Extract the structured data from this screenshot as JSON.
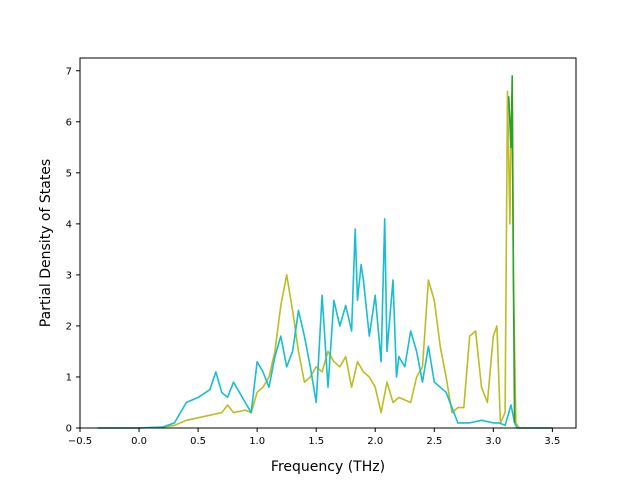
{
  "chart_data": {
    "type": "line",
    "title": "",
    "xlabel": "Frequency (THz)",
    "ylabel": "Partial Density of States",
    "xlim": [
      -0.5,
      3.7
    ],
    "ylim": [
      0,
      7.25
    ],
    "xticks": [
      -0.5,
      0.0,
      0.5,
      1.0,
      1.5,
      2.0,
      2.5,
      3.0,
      3.5
    ],
    "xtick_labels": [
      "−0.5",
      "0.0",
      "0.5",
      "1.0",
      "1.5",
      "2.0",
      "2.5",
      "3.0",
      "3.5"
    ],
    "yticks": [
      0,
      1,
      2,
      3,
      4,
      5,
      6,
      7
    ],
    "ytick_labels": [
      "0",
      "1",
      "2",
      "3",
      "4",
      "5",
      "6",
      "7"
    ],
    "grid": false,
    "legend": "none",
    "series": [
      {
        "color": "#bcbd22",
        "x": [
          -0.35,
          0.0,
          0.2,
          0.3,
          0.4,
          0.5,
          0.6,
          0.7,
          0.75,
          0.8,
          0.9,
          0.95,
          1.0,
          1.05,
          1.1,
          1.15,
          1.2,
          1.25,
          1.3,
          1.35,
          1.4,
          1.45,
          1.5,
          1.55,
          1.6,
          1.65,
          1.7,
          1.75,
          1.8,
          1.85,
          1.9,
          1.95,
          2.0,
          2.05,
          2.1,
          2.15,
          2.2,
          2.3,
          2.35,
          2.4,
          2.45,
          2.5,
          2.55,
          2.6,
          2.65,
          2.7,
          2.75,
          2.8,
          2.85,
          2.9,
          2.95,
          3.0,
          3.03,
          3.06,
          3.1,
          3.12,
          3.14,
          3.15,
          3.16,
          3.17,
          3.19,
          3.22,
          3.5
        ],
        "y": [
          0,
          0,
          0.02,
          0.05,
          0.15,
          0.2,
          0.25,
          0.3,
          0.45,
          0.3,
          0.35,
          0.3,
          0.7,
          0.8,
          1.0,
          1.5,
          2.4,
          3.0,
          2.3,
          1.5,
          0.9,
          1.0,
          1.2,
          1.1,
          1.5,
          1.3,
          1.2,
          1.4,
          0.8,
          1.3,
          1.1,
          1.0,
          0.8,
          0.3,
          0.9,
          0.5,
          0.6,
          0.5,
          1.0,
          1.2,
          2.9,
          2.5,
          1.6,
          1.0,
          0.3,
          0.4,
          0.4,
          1.8,
          1.9,
          0.8,
          0.5,
          1.8,
          2.0,
          0.1,
          0.3,
          6.6,
          4.0,
          5.8,
          6.5,
          3.0,
          0.1,
          0,
          0
        ]
      },
      {
        "color": "#17becf",
        "x": [
          -0.35,
          0.0,
          0.2,
          0.3,
          0.35,
          0.4,
          0.5,
          0.6,
          0.65,
          0.7,
          0.75,
          0.8,
          0.85,
          0.9,
          0.95,
          1.0,
          1.05,
          1.1,
          1.15,
          1.2,
          1.25,
          1.3,
          1.35,
          1.4,
          1.45,
          1.5,
          1.55,
          1.6,
          1.65,
          1.7,
          1.75,
          1.8,
          1.83,
          1.85,
          1.88,
          1.9,
          1.95,
          2.0,
          2.05,
          2.08,
          2.1,
          2.15,
          2.18,
          2.2,
          2.25,
          2.3,
          2.35,
          2.4,
          2.45,
          2.5,
          2.55,
          2.6,
          2.7,
          2.8,
          2.9,
          3.0,
          3.05,
          3.1,
          3.15,
          3.18,
          3.2,
          3.5
        ],
        "y": [
          0,
          0,
          0.02,
          0.1,
          0.3,
          0.5,
          0.6,
          0.75,
          1.1,
          0.7,
          0.6,
          0.9,
          0.7,
          0.5,
          0.3,
          1.3,
          1.1,
          0.8,
          1.4,
          1.8,
          1.2,
          1.5,
          2.3,
          1.8,
          1.2,
          0.5,
          2.6,
          0.8,
          2.5,
          2.0,
          2.4,
          1.9,
          3.9,
          2.5,
          3.2,
          2.9,
          1.8,
          2.6,
          1.3,
          4.1,
          1.5,
          2.9,
          1.0,
          1.4,
          1.2,
          1.9,
          1.5,
          0.9,
          1.6,
          0.9,
          0.8,
          0.7,
          0.1,
          0.1,
          0.15,
          0.1,
          0.1,
          0.05,
          0.45,
          0.1,
          0,
          0
        ]
      },
      {
        "color": "#2ca02c",
        "x": [
          3.13,
          3.15,
          3.16,
          3.17,
          3.18
        ],
        "y": [
          6.5,
          5.5,
          6.9,
          3.0,
          0.1
        ]
      }
    ]
  }
}
